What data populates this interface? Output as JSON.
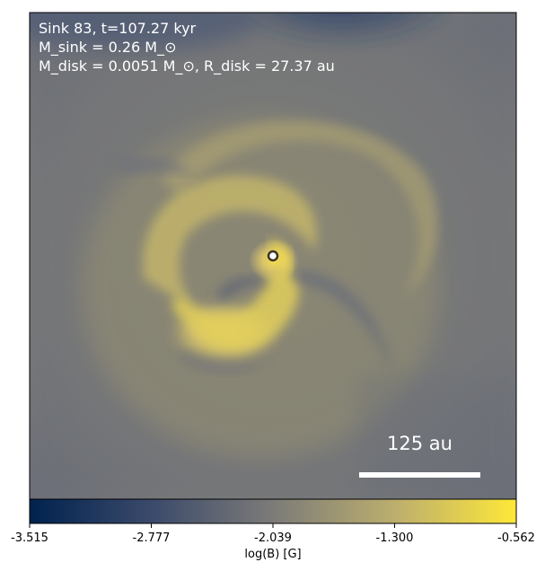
{
  "panel": {
    "line1": "Sink 83, t=107.27 kyr",
    "line2": "M_sink = 0.26 M_⊙",
    "line3": "M_disk = 0.0051 M_⊙, R_disk = 27.37 au"
  },
  "scale_bar": {
    "label": "125 au"
  },
  "colorbar": {
    "label": "log(B) [G]",
    "ticks": [
      "-3.515",
      "-2.777",
      "-2.039",
      "-1.300",
      "-0.562"
    ],
    "colors": {
      "low": "#0d2a6b",
      "mid": "#7c7b78",
      "high": "#fde83c"
    }
  },
  "sink_marker": {
    "icon": "sink-circle-icon",
    "fill": "#ffffff",
    "edge": "#3a3424"
  }
}
